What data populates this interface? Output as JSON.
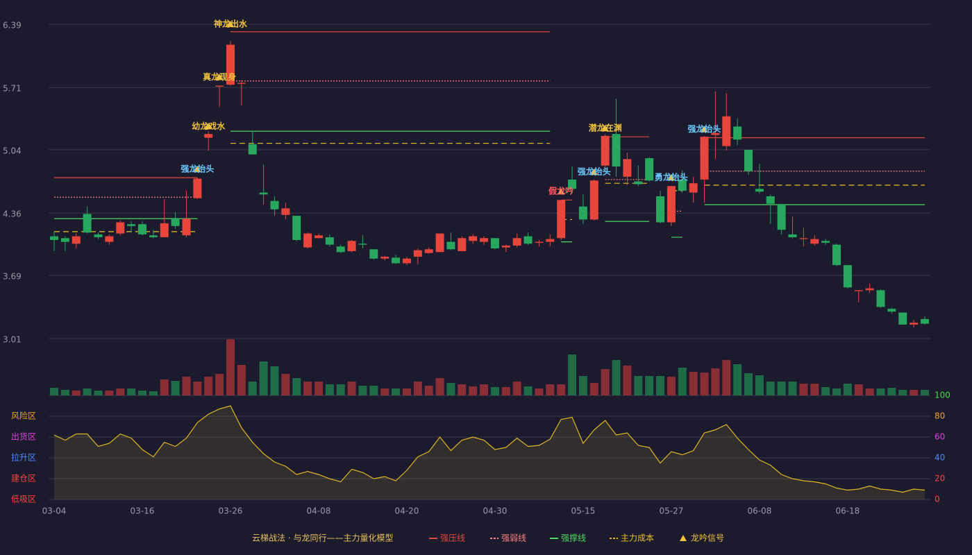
{
  "chart_data": {
    "type": "candlestick",
    "categories": [
      "03-04",
      null,
      null,
      null,
      null,
      null,
      null,
      null,
      "03-16",
      null,
      null,
      null,
      null,
      null,
      null,
      null,
      "03-26",
      null,
      null,
      null,
      null,
      null,
      null,
      null,
      "04-08",
      null,
      null,
      null,
      null,
      null,
      null,
      null,
      "04-20",
      null,
      null,
      null,
      null,
      null,
      null,
      null,
      "04-30",
      null,
      null,
      null,
      null,
      null,
      null,
      null,
      "05-15",
      null,
      null,
      null,
      null,
      null,
      null,
      null,
      "05-27",
      null,
      null,
      null,
      null,
      null,
      null,
      null,
      "06-08",
      null,
      null,
      null,
      null,
      null,
      null,
      null,
      "06-18",
      null,
      null,
      null,
      null,
      null,
      null,
      null
    ],
    "open": [
      4.11,
      4.09,
      4.03,
      4.35,
      4.13,
      4.05,
      4.14,
      4.24,
      4.24,
      4.12,
      4.1,
      4.3,
      4.12,
      4.52,
      5.17,
      5.72,
      5.74,
      5.75,
      5.1,
      4.58,
      4.49,
      4.34,
      4.33,
      3.99,
      4.09,
      4.1,
      4.0,
      3.95,
      4.03,
      3.97,
      3.87,
      3.88,
      3.82,
      3.89,
      3.93,
      3.94,
      4.05,
      3.95,
      4.06,
      4.05,
      4.09,
      3.99,
      4.01,
      4.11,
      4.04,
      4.05,
      4.09,
      4.72,
      4.43,
      4.29,
      4.87,
      5.21,
      4.75,
      4.7,
      4.95,
      4.54,
      4.26,
      4.72,
      4.58,
      4.72,
      5.2,
      5.08,
      5.29,
      5.04,
      4.62,
      4.54,
      4.45,
      4.13,
      4.08,
      4.03,
      4.06,
      4.02,
      3.8,
      3.52,
      3.53,
      3.53,
      3.33,
      3.29,
      3.16,
      3.22
    ],
    "high": [
      4.16,
      4.11,
      4.14,
      4.43,
      4.15,
      4.13,
      4.28,
      4.27,
      4.27,
      4.18,
      4.51,
      4.37,
      4.6,
      4.74,
      5.24,
      5.73,
      6.21,
      5.79,
      5.24,
      4.88,
      4.54,
      4.47,
      4.33,
      4.15,
      4.14,
      4.13,
      4.02,
      4.07,
      4.12,
      3.97,
      3.9,
      3.91,
      3.89,
      3.98,
      3.99,
      4.14,
      4.15,
      4.11,
      4.13,
      4.11,
      4.09,
      4.02,
      4.14,
      4.15,
      4.07,
      4.13,
      4.5,
      4.86,
      4.56,
      4.72,
      5.21,
      5.59,
      5.01,
      4.87,
      4.96,
      4.6,
      4.65,
      4.82,
      4.75,
      5.19,
      5.67,
      5.65,
      5.38,
      5.04,
      4.89,
      4.56,
      4.46,
      4.32,
      4.2,
      4.12,
      4.08,
      4.03,
      3.8,
      3.53,
      3.6,
      3.54,
      3.34,
      3.29,
      3.21,
      3.25
    ],
    "low": [
      3.95,
      3.95,
      3.98,
      4.14,
      4.08,
      4.02,
      4.12,
      4.15,
      4.12,
      4.09,
      4.1,
      4.19,
      4.1,
      4.51,
      5.03,
      5.5,
      5.73,
      5.52,
      4.99,
      4.45,
      4.33,
      4.29,
      4.06,
      3.98,
      4.09,
      4.0,
      3.93,
      3.94,
      3.98,
      3.86,
      3.85,
      3.81,
      3.8,
      3.81,
      3.92,
      3.94,
      3.96,
      3.95,
      4.03,
      4.02,
      3.97,
      3.94,
      3.99,
      4.02,
      4.0,
      4.0,
      4.07,
      4.57,
      4.24,
      4.28,
      4.8,
      4.75,
      4.66,
      4.65,
      4.7,
      4.25,
      4.22,
      4.58,
      4.47,
      4.47,
      4.94,
      5.03,
      5.09,
      4.77,
      4.57,
      4.24,
      4.13,
      4.09,
      4.0,
      4.01,
      4.02,
      3.79,
      3.55,
      3.4,
      3.5,
      3.34,
      3.28,
      3.16,
      3.13,
      3.16
    ],
    "close": [
      4.07,
      4.05,
      4.11,
      4.15,
      4.1,
      4.11,
      4.26,
      4.22,
      4.13,
      4.1,
      4.25,
      4.22,
      4.3,
      4.73,
      5.21,
      5.73,
      6.17,
      5.76,
      4.99,
      4.56,
      4.4,
      4.41,
      4.07,
      4.14,
      4.12,
      4.02,
      3.94,
      4.06,
      4.02,
      3.87,
      3.89,
      3.82,
      3.87,
      3.96,
      3.97,
      4.14,
      3.97,
      4.09,
      4.11,
      4.09,
      3.98,
      4.01,
      4.09,
      4.03,
      4.05,
      4.08,
      4.5,
      4.62,
      4.29,
      4.71,
      5.19,
      4.86,
      4.94,
      4.67,
      4.71,
      4.26,
      4.65,
      4.6,
      4.68,
      5.18,
      5.22,
      5.4,
      5.15,
      4.81,
      4.59,
      4.46,
      4.18,
      4.1,
      4.09,
      4.08,
      4.04,
      3.8,
      3.56,
      3.53,
      3.55,
      3.35,
      3.3,
      3.16,
      3.18,
      3.17
    ],
    "volume": [
      11,
      8,
      7,
      10,
      7,
      7,
      10,
      10,
      7,
      6,
      23,
      21,
      27,
      20,
      27,
      31,
      81,
      44,
      20,
      49,
      42,
      31,
      25,
      20,
      20,
      16,
      16,
      20,
      14,
      14,
      10,
      10,
      10,
      20,
      14,
      25,
      18,
      16,
      13,
      16,
      12,
      12,
      20,
      13,
      10,
      16,
      16,
      59,
      28,
      18,
      38,
      51,
      43,
      28,
      28,
      28,
      27,
      40,
      34,
      33,
      39,
      51,
      45,
      32,
      29,
      20,
      20,
      20,
      17,
      17,
      12,
      10,
      17,
      16,
      10,
      10,
      11,
      8,
      8,
      8
    ],
    "ylim": [
      3.01,
      6.39
    ],
    "yticks": [
      3.01,
      3.69,
      4.36,
      5.04,
      5.71,
      6.39
    ],
    "up_color": "#e8453c",
    "down_color": "#27a85e",
    "level_spans": [
      [
        0,
        13
      ],
      [
        16,
        45
      ],
      [
        46,
        47
      ],
      [
        50,
        54
      ],
      [
        56,
        57
      ],
      [
        59,
        79
      ]
    ],
    "level_series": [
      {
        "name": "强压线",
        "color": "#e8453c",
        "dash": "none",
        "values": [
          4.74,
          6.31,
          4.5,
          5.18,
          null,
          5.17
        ]
      },
      {
        "name": "强弱线",
        "color": "#ff8080",
        "dash": "2,2",
        "values": [
          4.53,
          5.78,
          null,
          4.72,
          4.38,
          4.81
        ]
      },
      {
        "name": "强撑线",
        "color": "#4cd964",
        "dash": "none",
        "values": [
          4.3,
          5.24,
          4.05,
          4.27,
          4.1,
          4.45
        ]
      },
      {
        "name": "主力成本",
        "color": "#f0c020",
        "dash": "8,5",
        "values": [
          4.16,
          5.11,
          4.29,
          4.68,
          4.6,
          4.66
        ]
      }
    ],
    "signal_legend": {
      "name": "龙吟信号",
      "color": "#f0c040"
    },
    "signals": [
      {
        "index": 13,
        "label": "强龙抬头",
        "value": 4.83,
        "color": "#6cc8ff"
      },
      {
        "index": 14,
        "label": "幼龙戏水",
        "value": 5.29,
        "color": "#f0c040"
      },
      {
        "index": 15,
        "label": "真龙现身",
        "value": 5.82,
        "color": "#f0c040"
      },
      {
        "index": 16,
        "label": "神龙出水",
        "value": 6.39,
        "color": "#f0c040"
      },
      {
        "index": 46,
        "label": "假龙吟",
        "value": 4.59,
        "color": "#ff6060"
      },
      {
        "index": 49,
        "label": "强龙抬头",
        "value": 4.8,
        "color": "#6cc8ff"
      },
      {
        "index": 50,
        "label": "潜龙在渊",
        "value": 5.27,
        "color": "#f0c040"
      },
      {
        "index": 56,
        "label": "勇龙抬头",
        "value": 4.74,
        "color": "#6cc8ff"
      },
      {
        "index": 59,
        "label": "强龙抬头",
        "value": 5.26,
        "color": "#6cc8ff"
      }
    ],
    "indicator": {
      "color": "#e0b820",
      "values": [
        62,
        57,
        63,
        63,
        51,
        54,
        63,
        59,
        48,
        41,
        55,
        51,
        59,
        74,
        82,
        87,
        90,
        69,
        55,
        44,
        36,
        32,
        24,
        27,
        24,
        20,
        17,
        29,
        26,
        20,
        22,
        18,
        28,
        41,
        46,
        60,
        47,
        57,
        60,
        57,
        48,
        50,
        59,
        51,
        52,
        58,
        77,
        79,
        54,
        67,
        76,
        62,
        64,
        52,
        50,
        35,
        46,
        43,
        47,
        64,
        67,
        72,
        59,
        48,
        38,
        33,
        24,
        20,
        18,
        17,
        15,
        11,
        9,
        10,
        13,
        10,
        9,
        7,
        10,
        9
      ],
      "ylim": [
        0,
        100
      ],
      "yticks": [
        0,
        20,
        40,
        60,
        80,
        100
      ],
      "tick_colors": [
        "#ff4040",
        "#ff4040",
        "#4a8cff",
        "#e040e0",
        "#f0a020",
        "#40e040"
      ],
      "zones": [
        {
          "label": "风险区",
          "value": 80,
          "color": "#f0a020"
        },
        {
          "label": "出货区",
          "value": 60,
          "color": "#e040e0"
        },
        {
          "label": "拉升区",
          "value": 40,
          "color": "#4a8cff"
        },
        {
          "label": "建仓区",
          "value": 20,
          "color": "#ff4040"
        },
        {
          "label": "低吸区",
          "value": 0,
          "color": "#ff4040"
        }
      ]
    },
    "legend_title": "云梯战法 · 与龙同行——主力量化模型"
  }
}
